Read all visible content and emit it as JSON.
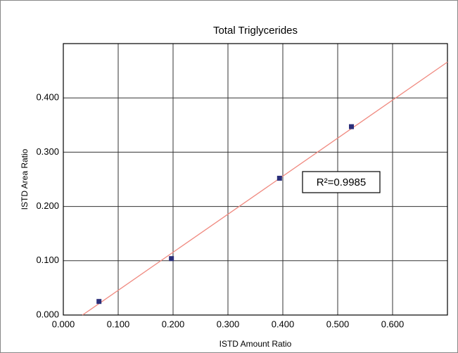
{
  "chart_data": {
    "type": "scatter",
    "title": "Total Triglycerides",
    "x_label": "ISTD Amount Ratio",
    "y_label": "ISTD Area Ratio",
    "series": [
      {
        "x": [
          0.065,
          0.197,
          0.394,
          0.525
        ],
        "values": [
          0.025,
          0.104,
          0.252,
          0.347
        ],
        "color": "#2b2f7a"
      }
    ],
    "trendline": {
      "x": [
        0.035,
        0.7
      ],
      "values": [
        0.0,
        0.466
      ],
      "color": "#f08a80"
    },
    "annotation": "R²=0.9985",
    "xlim": [
      0,
      0.7
    ],
    "ylim": [
      0,
      0.5
    ],
    "xticks": [
      {
        "value": 0,
        "label": "0.000"
      },
      {
        "value": 0.1,
        "label": "0.100"
      },
      {
        "value": 0.2,
        "label": "0.200"
      },
      {
        "value": 0.3,
        "label": "0.300"
      },
      {
        "value": 0.4,
        "label": "0.400"
      },
      {
        "value": 0.5,
        "label": "0.500"
      },
      {
        "value": 0.6,
        "label": "0.600"
      }
    ],
    "yticks": [
      {
        "value": 0,
        "label": "0.000"
      },
      {
        "value": 0.1,
        "label": "0.100"
      },
      {
        "value": 0.2,
        "label": "0.200"
      },
      {
        "value": 0.3,
        "label": "0.300"
      },
      {
        "value": 0.4,
        "label": "0.400"
      }
    ],
    "grid": true
  }
}
